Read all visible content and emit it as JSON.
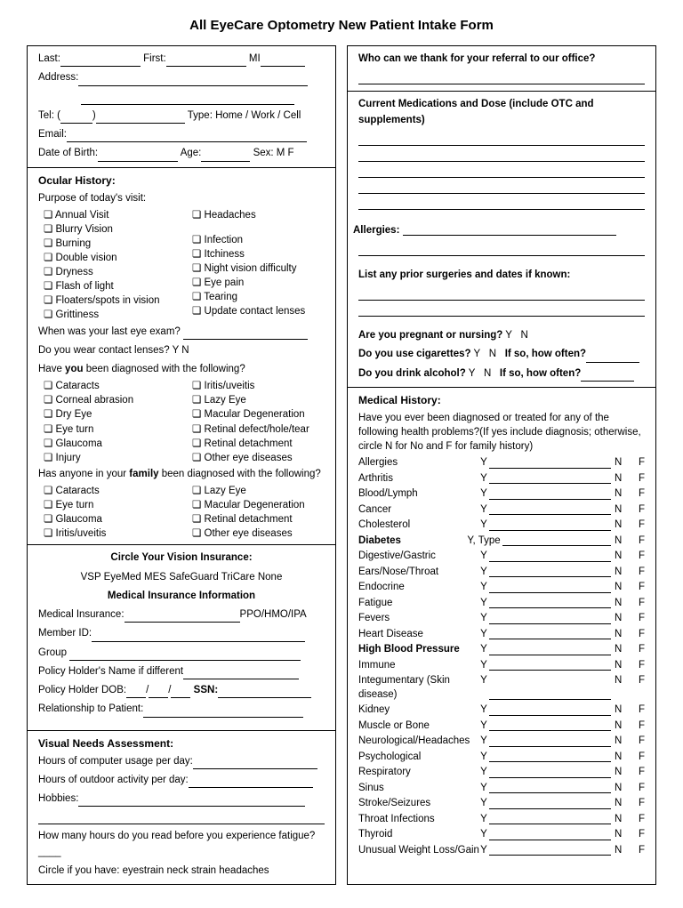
{
  "title": "All EyeCare Optometry New Patient Intake Form",
  "left": {
    "personal": {
      "last": "Last:",
      "first": "First:",
      "mi": "MI",
      "address": "Address:",
      "tel": "Tel: (",
      "type": "Type: Home / Work / Cell",
      "email": "Email:",
      "dob": "Date of Birth:",
      "age": "Age:",
      "sex": "Sex:  M     F"
    },
    "ocular": {
      "header": "Ocular History:",
      "purpose": "Purpose of today's visit:",
      "col1": [
        "Annual Visit",
        "Blurry Vision",
        "Burning",
        "Double vision",
        "Dryness",
        "Flash of light",
        "Floaters/spots in vision",
        "Grittiness"
      ],
      "col2": [
        "Headaches",
        "",
        "Infection",
        "Itchiness",
        "Night vision difficulty",
        "Eye pain",
        "Tearing",
        "Update contact lenses"
      ],
      "lastexam": "When was your last eye exam?",
      "contacts": "Do you wear contact lenses?    Y    N",
      "diagYou": "Have you been diagnosed with the following?",
      "diagYouBold": "you",
      "diag1a": [
        "Cataracts",
        "Corneal abrasion",
        "Dry Eye",
        "Eye turn",
        "Glaucoma",
        "Injury"
      ],
      "diag1b": [
        "Iritis/uveitis",
        "Lazy Eye",
        "Macular Degeneration",
        "Retinal defect/hole/tear",
        "Retinal detachment",
        "Other eye diseases"
      ],
      "diagFam": "Has anyone in your family been diagnosed with the following?",
      "diagFamBold": "family",
      "diag2a": [
        "Cataracts",
        "Eye turn",
        "Glaucoma",
        "Iritis/uveitis"
      ],
      "diag2b": [
        "Lazy Eye",
        "Macular Degeneration",
        "Retinal detachment",
        "Other eye diseases"
      ]
    },
    "insurance": {
      "header": "Circle Your Vision Insurance:",
      "options": "VSP    EyeMed    MES    SafeGuard    TriCare    None",
      "medheader": "Medical Insurance Information",
      "medins": "Medical Insurance:",
      "ppo": "PPO/HMO/IPA",
      "member": "Member ID:",
      "group": "Group",
      "policyname": "Policy Holder's Name if different",
      "policydob": "Policy Holder DOB:____/____/____ SSN:",
      "ssn": "SSN:",
      "rel": "Relationship to Patient:"
    },
    "visual": {
      "header": "Visual Needs Assessment:",
      "comp": "Hours of computer usage per day:",
      "outdoor": "Hours of outdoor activity per day:",
      "hobbies": "Hobbies:",
      "fatigue": "How many hours do you read before you experience fatigue?____",
      "circle": "Circle if you have:    eyestrain    neck strain    headaches"
    }
  },
  "right": {
    "referral": "Who can we thank for your referral to our office?",
    "meds": "Current Medications and Dose (include OTC and supplements)",
    "allergies": "Allergies:",
    "surgeries": "List any prior surgeries and dates if known:",
    "pregnant": "Are you pregnant or nursing? Y    N",
    "cig": "Do you use cigarettes? Y    N    If so, how often?",
    "cigBold": "If so, how often?",
    "alc": "Do you drink alcohol? Y    N    If so, how often?",
    "alcBold": "If so, how often?",
    "medhist": {
      "header": "Medical History:",
      "intro": "Have you ever been diagnosed or treated for any of the following health problems?(If yes include diagnosis; otherwise, circle N for No and F for family history)",
      "items": [
        {
          "n": "Allergies",
          "b": false
        },
        {
          "n": "Arthritis",
          "b": false
        },
        {
          "n": "Blood/Lymph",
          "b": false
        },
        {
          "n": "Cancer",
          "b": false
        },
        {
          "n": "Cholesterol",
          "b": false
        },
        {
          "n": "Diabetes",
          "b": true,
          "y": "Y, Type"
        },
        {
          "n": "Digestive/Gastric",
          "b": false
        },
        {
          "n": "Ears/Nose/Throat",
          "b": false
        },
        {
          "n": "Endocrine",
          "b": false
        },
        {
          "n": "Fatigue",
          "b": false
        },
        {
          "n": "Fevers",
          "b": false
        },
        {
          "n": "Heart Disease",
          "b": false
        },
        {
          "n": "High Blood Pressure",
          "b": true
        },
        {
          "n": "Immune",
          "b": false
        },
        {
          "n": "Integumentary (Skin disease)",
          "b": false
        },
        {
          "n": "Kidney",
          "b": false
        },
        {
          "n": "Muscle or Bone",
          "b": false
        },
        {
          "n": "Neurological/Headaches",
          "b": false
        },
        {
          "n": "Psychological",
          "b": false
        },
        {
          "n": "Respiratory",
          "b": false
        },
        {
          "n": "Sinus",
          "b": false
        },
        {
          "n": "Stroke/Seizures",
          "b": false
        },
        {
          "n": "Throat Infections",
          "b": false
        },
        {
          "n": "Thyroid",
          "b": false
        },
        {
          "n": "Unusual Weight Loss/Gain",
          "b": false
        }
      ]
    }
  }
}
